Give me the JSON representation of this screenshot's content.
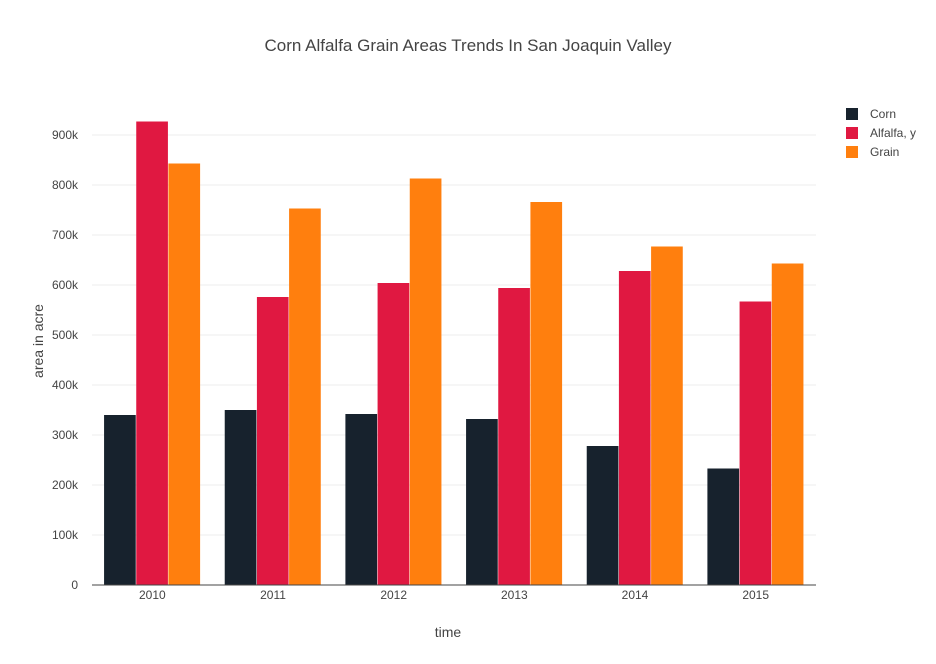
{
  "chart_data": {
    "type": "bar",
    "title": "Corn Alfalfa Grain Areas Trends In  San Joaquin Valley",
    "xlabel": "time",
    "ylabel": "area in acre",
    "categories": [
      "2010",
      "2011",
      "2012",
      "2013",
      "2014",
      "2015"
    ],
    "ylim": [
      0,
      1000000
    ],
    "yticks": [
      0,
      100000,
      200000,
      300000,
      400000,
      500000,
      600000,
      700000,
      800000,
      900000
    ],
    "ytick_labels": [
      "0",
      "100k",
      "200k",
      "300k",
      "400k",
      "500k",
      "600k",
      "700k",
      "800k",
      "900k"
    ],
    "grid": true,
    "legend_position": "top-right",
    "series": [
      {
        "name": "Corn",
        "color": "#17222d",
        "values": [
          340000,
          350000,
          342000,
          332000,
          278000,
          233000
        ]
      },
      {
        "name": "Alfalfa, y",
        "color": "#e01841",
        "values": [
          927000,
          576000,
          604000,
          594000,
          628000,
          567000
        ]
      },
      {
        "name": "Grain",
        "color": "#ff7f0e",
        "values": [
          843000,
          753000,
          813000,
          766000,
          677000,
          643000
        ]
      }
    ]
  }
}
